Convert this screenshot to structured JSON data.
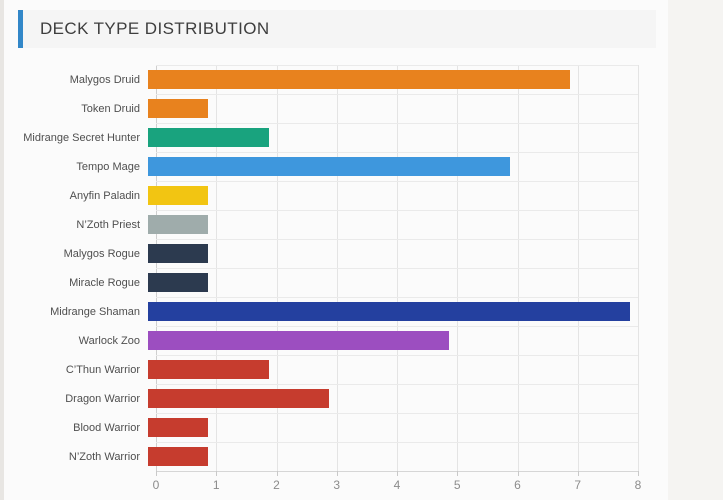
{
  "header": {
    "title": "DECK TYPE DISTRIBUTION",
    "accent_color": "#3287c8"
  },
  "chart_data": {
    "type": "bar",
    "orientation": "horizontal",
    "title": "DECK TYPE DISTRIBUTION",
    "categories": [
      "Malygos Druid",
      "Token Druid",
      "Midrange Secret Hunter",
      "Tempo Mage",
      "Anyfin Paladin",
      "N’Zoth Priest",
      "Malygos Rogue",
      "Miracle Rogue",
      "Midrange Shaman",
      "Warlock Zoo",
      "C’Thun Warrior",
      "Dragon Warrior",
      "Blood Warrior",
      "N’Zoth Warrior"
    ],
    "values": [
      7,
      1,
      2,
      6,
      1,
      1,
      1,
      1,
      8,
      5,
      2,
      3,
      1,
      1
    ],
    "bar_colors": [
      "#e8821e",
      "#e8821e",
      "#19a37e",
      "#3e97dd",
      "#f2c512",
      "#9facab",
      "#2c3a4f",
      "#2c3a4f",
      "#24409f",
      "#9c4ec0",
      "#c63c2e",
      "#c63c2e",
      "#c63c2e",
      "#c63c2e"
    ],
    "xlabel": "",
    "ylabel": "",
    "xlim": [
      0,
      8
    ],
    "x_ticks": [
      0,
      1,
      2,
      3,
      4,
      5,
      6,
      7,
      8
    ],
    "grid": true,
    "legend": "none"
  }
}
